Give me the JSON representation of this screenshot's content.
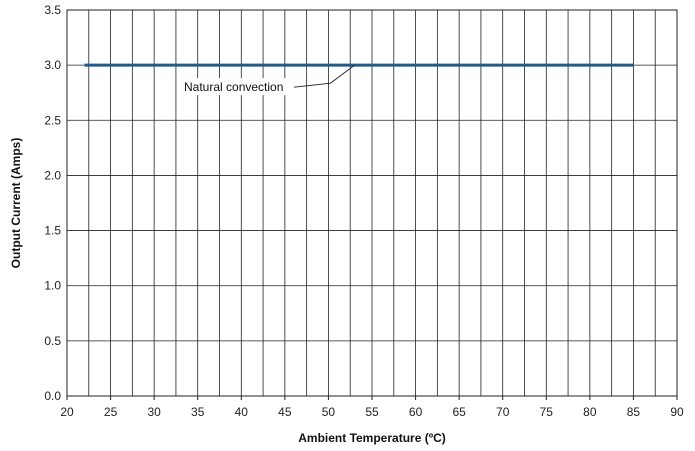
{
  "chart_data": {
    "type": "line",
    "title": "",
    "xlabel": "Ambient Temperature (ºC)",
    "ylabel": "Output Current (Amps)",
    "xlim": [
      20,
      90
    ],
    "ylim": [
      0.0,
      3.5
    ],
    "x_ticks": [
      "20",
      "25",
      "30",
      "35",
      "40",
      "45",
      "50",
      "55",
      "60",
      "65",
      "70",
      "75",
      "80",
      "85",
      "90"
    ],
    "y_ticks": [
      "0.0",
      "0.5",
      "1.0",
      "1.5",
      "2.0",
      "2.5",
      "3.0",
      "3.5"
    ],
    "grid": true,
    "x_grid_step": 2.5,
    "y_grid_step": 0.5,
    "series": [
      {
        "x": [
          22,
          85
        ],
        "y": [
          3.0,
          3.0
        ],
        "color": "#1f5a8c"
      }
    ],
    "annotations": [
      {
        "text": "Natural convection",
        "x": 53,
        "y": 3.0
      }
    ]
  }
}
